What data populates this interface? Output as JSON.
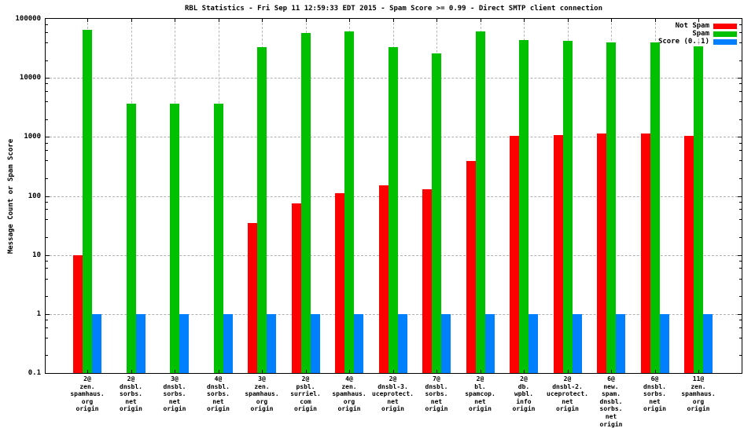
{
  "chart_data": {
    "type": "bar",
    "title": "RBL Statistics - Fri Sep 11 12:59:33 EDT 2015 - Spam Score >= 0.99 - Direct SMTP client connection",
    "ylabel": "Message Count or Spam Score",
    "y_scale": "log",
    "ylim": [
      0.1,
      100000
    ],
    "y_tick_labels": [
      "100000",
      "10000",
      "1000",
      "100",
      "10",
      "1",
      "0.1"
    ],
    "grid": true,
    "legend_position": "top-right-inside",
    "colors": {
      "not_spam": "#ff0000",
      "spam": "#00c000",
      "score": "#0080ff",
      "grid": "#b0b0b0",
      "axis": "#000000",
      "background": "#ffffff"
    },
    "categories": [
      [
        "2@",
        "zen.",
        "spamhaus.",
        "org",
        "origin"
      ],
      [
        "2@",
        "dnsbl.",
        "sorbs.",
        "net",
        "origin"
      ],
      [
        "3@",
        "dnsbl.",
        "sorbs.",
        "net",
        "origin"
      ],
      [
        "4@",
        "dnsbl.",
        "sorbs.",
        "net",
        "origin"
      ],
      [
        "3@",
        "zen.",
        "spamhaus.",
        "org",
        "origin"
      ],
      [
        "2@",
        "psbl.",
        "surriel.",
        "com",
        "origin"
      ],
      [
        "4@",
        "zen.",
        "spamhaus.",
        "org",
        "origin"
      ],
      [
        "2@",
        "dnsbl-3.",
        "uceprotect.",
        "net",
        "origin"
      ],
      [
        "7@",
        "dnsbl.",
        "sorbs.",
        "net",
        "origin"
      ],
      [
        "2@",
        "bl.",
        "spamcop.",
        "net",
        "origin"
      ],
      [
        "2@",
        "db.",
        "wpbl.",
        "info",
        "origin"
      ],
      [
        "2@",
        "dnsbl-2.",
        "uceprotect.",
        "net",
        "origin"
      ],
      [
        "6@",
        "new.",
        "spam.",
        "dnsbl.",
        "sorbs.",
        "net",
        "origin"
      ],
      [
        "6@",
        "dnsbl.",
        "sorbs.",
        "net",
        "origin"
      ],
      [
        "11@",
        "zen.",
        "spamhaus.",
        "org",
        "origin"
      ]
    ],
    "series": [
      {
        "name": "Not Spam",
        "color": "#ff0000",
        "values": [
          10,
          null,
          null,
          null,
          35,
          75,
          110,
          150,
          130,
          390,
          1050,
          1080,
          1130,
          1140,
          1030
        ]
      },
      {
        "name": "Spam",
        "color": "#00c000",
        "values": [
          65000,
          3700,
          3700,
          3700,
          33000,
          58000,
          62000,
          33000,
          26000,
          62000,
          44000,
          42000,
          40000,
          40000,
          34000
        ]
      },
      {
        "name": "Score (0..1)",
        "color": "#0080ff",
        "values": [
          1,
          1,
          1,
          1,
          1,
          1,
          1,
          1,
          1,
          1,
          1,
          1,
          1,
          1,
          1
        ]
      }
    ]
  }
}
